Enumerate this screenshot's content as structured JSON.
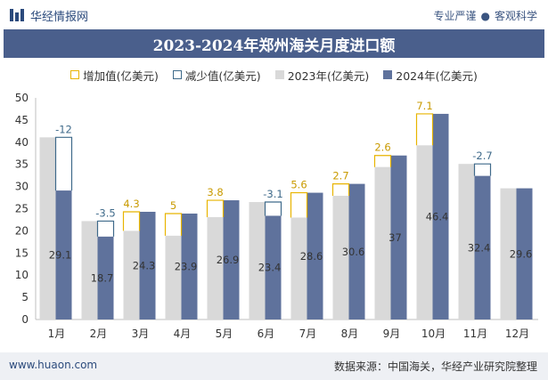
{
  "brand": {
    "logo_text": "华经情报网",
    "tagline_left": "专业严谨",
    "tagline_right": "客观科学"
  },
  "footer": {
    "website": "www.huaon.com",
    "source": "数据来源：中国海关，华经产业研究院整理"
  },
  "colors": {
    "bar_2023": "#d9d9d9",
    "bar_2024": "#5f729c",
    "increase": "#e8b400",
    "decrease": "#3f6a8a",
    "title_bg": "#4a5f8c"
  },
  "chart_data": {
    "type": "bar",
    "title": "2023-2024年郑州海关月度进口额",
    "categories": [
      "1月",
      "2月",
      "3月",
      "4月",
      "5月",
      "6月",
      "7月",
      "8月",
      "9月",
      "10月",
      "11月",
      "12月"
    ],
    "series": [
      {
        "name": "2023年(亿美元)",
        "values": [
          41.1,
          22.2,
          20.0,
          18.9,
          23.1,
          26.5,
          23.0,
          27.9,
          34.4,
          39.3,
          35.1,
          29.6
        ]
      },
      {
        "name": "2024年(亿美元)",
        "values": [
          29.1,
          18.7,
          24.3,
          23.9,
          26.9,
          23.4,
          28.6,
          30.6,
          37.0,
          46.4,
          32.4,
          29.6
        ]
      }
    ],
    "difference": {
      "increase_name": "增加值(亿美元)",
      "decrease_name": "减少值(亿美元)",
      "labels": [
        "-12",
        "-3.5",
        "4.3",
        "5",
        "3.8",
        "-3.1",
        "5.6",
        "2.7",
        "2.6",
        "7.1",
        "-2.7",
        ""
      ]
    },
    "value_labels_2024": [
      "29.1",
      "18.7",
      "24.3",
      "23.9",
      "26.9",
      "23.4",
      "28.6",
      "30.6",
      "37",
      "46.4",
      "32.4",
      "29.6"
    ],
    "y_ticks": [
      "0",
      "5",
      "10",
      "15",
      "20",
      "25",
      "30",
      "35",
      "40",
      "45",
      "50"
    ],
    "ylim": [
      0,
      50
    ],
    "grid": false,
    "legend_position": "top"
  }
}
